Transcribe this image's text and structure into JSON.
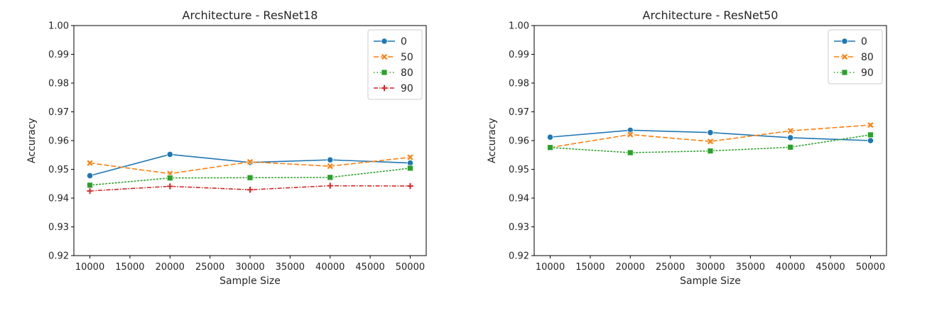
{
  "chart_data": [
    {
      "type": "line",
      "title": "Architecture - ResNet18",
      "xlabel": "Sample Size",
      "ylabel": "Accuracy",
      "xlim": [
        8000,
        52000
      ],
      "ylim": [
        0.92,
        1.0
      ],
      "xticks": [
        10000,
        15000,
        20000,
        25000,
        30000,
        35000,
        40000,
        45000,
        50000
      ],
      "yticks": [
        "0.92",
        "0.93",
        "0.94",
        "0.95",
        "0.96",
        "0.97",
        "0.98",
        "0.99",
        "1.00"
      ],
      "legend_position": "top-right",
      "grid": false,
      "x": [
        10000,
        20000,
        30000,
        40000,
        50000
      ],
      "series": [
        {
          "name": "0",
          "values": [
            0.9478,
            0.9552,
            0.9524,
            0.9533,
            0.9522
          ],
          "color": "#1f77b4",
          "marker": "circle",
          "dash": "solid"
        },
        {
          "name": "50",
          "values": [
            0.9522,
            0.9485,
            0.9526,
            0.9511,
            0.9542
          ],
          "color": "#ff7f0e",
          "marker": "x",
          "dash": "dashed"
        },
        {
          "name": "80",
          "values": [
            0.9445,
            0.947,
            0.9471,
            0.9472,
            0.9504
          ],
          "color": "#2ca02c",
          "marker": "square",
          "dash": "dotted"
        },
        {
          "name": "90",
          "values": [
            0.9425,
            0.9441,
            0.9429,
            0.9443,
            0.9442
          ],
          "color": "#d62728",
          "marker": "plus",
          "dash": "dashdot"
        }
      ]
    },
    {
      "type": "line",
      "title": "Architecture - ResNet50",
      "xlabel": "Sample Size",
      "ylabel": "Accuracy",
      "xlim": [
        8000,
        52000
      ],
      "ylim": [
        0.92,
        1.0
      ],
      "xticks": [
        10000,
        15000,
        20000,
        25000,
        30000,
        35000,
        40000,
        45000,
        50000
      ],
      "yticks": [
        "0.92",
        "0.93",
        "0.94",
        "0.95",
        "0.96",
        "0.97",
        "0.98",
        "0.99",
        "1.00"
      ],
      "legend_position": "top-right",
      "grid": false,
      "x": [
        10000,
        20000,
        30000,
        40000,
        50000
      ],
      "series": [
        {
          "name": "0",
          "values": [
            0.9612,
            0.9636,
            0.9628,
            0.961,
            0.96
          ],
          "color": "#1f77b4",
          "marker": "circle",
          "dash": "solid"
        },
        {
          "name": "80",
          "values": [
            0.9576,
            0.9621,
            0.9597,
            0.9634,
            0.9654
          ],
          "color": "#ff7f0e",
          "marker": "x",
          "dash": "dashed"
        },
        {
          "name": "90",
          "values": [
            0.9576,
            0.9558,
            0.9564,
            0.9577,
            0.962
          ],
          "color": "#2ca02c",
          "marker": "square",
          "dash": "dotted"
        }
      ]
    }
  ]
}
